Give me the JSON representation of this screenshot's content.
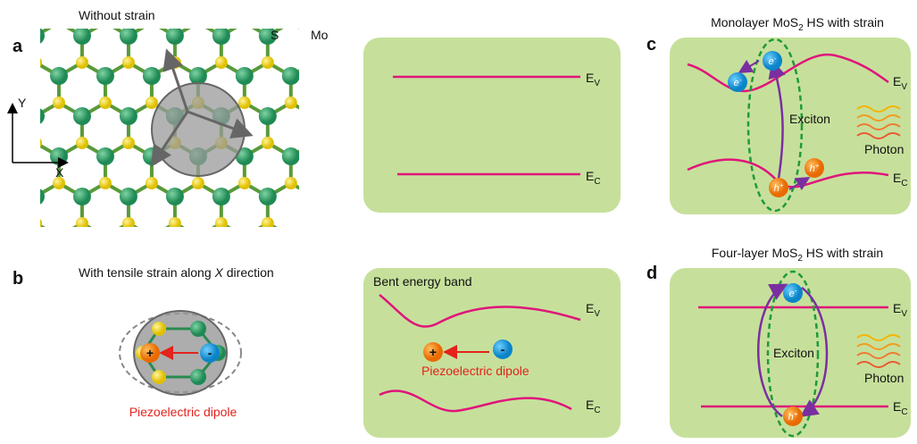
{
  "panel_a": {
    "label": "a",
    "title": "Without strain",
    "atom_labels": [
      "S",
      "Mo"
    ],
    "axes": {
      "y": "Y",
      "x": "X"
    }
  },
  "band_flat": {
    "ev": {
      "main": "E",
      "sub": "V"
    },
    "ec": {
      "main": "E",
      "sub": "C"
    }
  },
  "panel_b": {
    "label": "b",
    "title": {
      "before": "With tensile strain along ",
      "axis": "X",
      "after": " direction"
    },
    "plus": "+",
    "minus": "-",
    "dipole": "Piezoelectric dipole"
  },
  "band_bent": {
    "title": "Bent energy band",
    "ev": {
      "main": "E",
      "sub": "V"
    },
    "ec": {
      "main": "E",
      "sub": "C"
    },
    "plus": "+",
    "minus": "-",
    "dipole": "Piezoelectric dipole"
  },
  "panel_c": {
    "label": "c",
    "title": {
      "before": "Monolayer MoS",
      "sub": "2",
      "after": " HS with strain"
    },
    "electrons": [
      {
        "main": "e",
        "sup": "-"
      },
      {
        "main": "e",
        "sup": "-"
      }
    ],
    "exciton": "Exciton",
    "holes": [
      {
        "main": "h",
        "sup": "+"
      },
      {
        "main": "h",
        "sup": "+"
      }
    ],
    "photon": "Photon",
    "ev": {
      "main": "E",
      "sub": "V"
    },
    "ec": {
      "main": "E",
      "sub": "C"
    }
  },
  "panel_d": {
    "label": "d",
    "title": {
      "before": "Four-layer MoS",
      "sub": "2",
      "after": " HS with strain"
    },
    "electron": {
      "main": "e",
      "sup": "-"
    },
    "exciton": "Exciton",
    "hole": {
      "main": "h",
      "sup": "+"
    },
    "photon": "Photon",
    "ev": {
      "main": "E",
      "sub": "V"
    },
    "ec": {
      "main": "E",
      "sub": "C"
    }
  }
}
